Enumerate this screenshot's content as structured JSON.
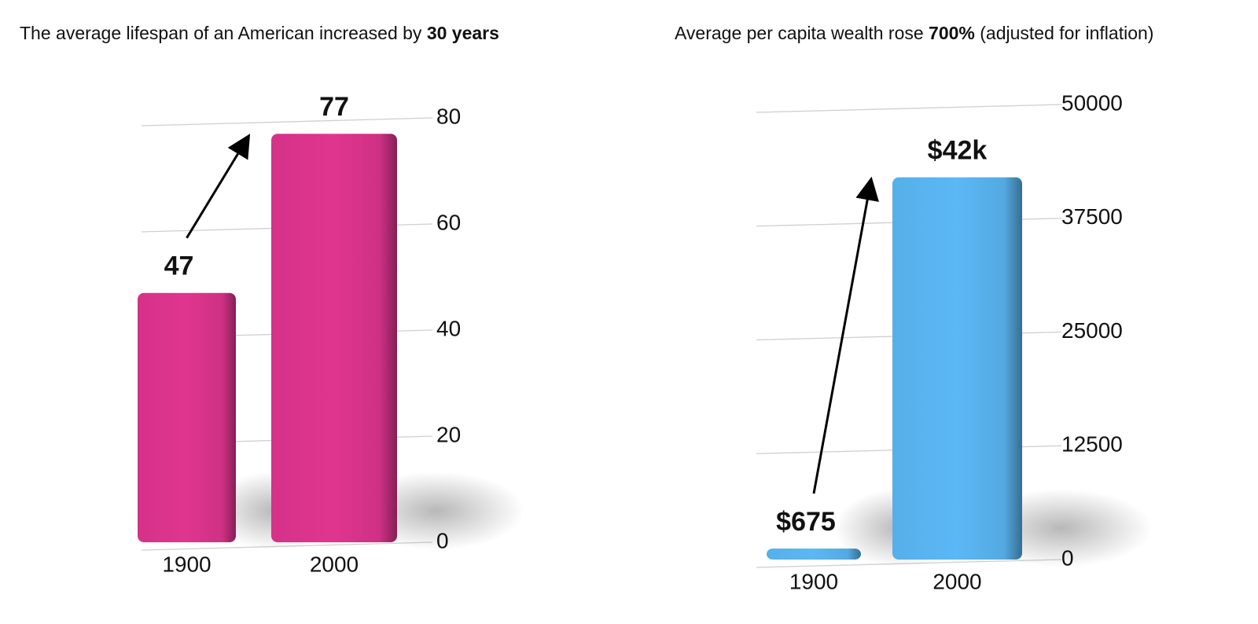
{
  "chart_data": [
    {
      "type": "bar",
      "title": "The average lifespan of an American increased by 30 years",
      "title_emphasis": "30 years",
      "categories": [
        "1900",
        "2000"
      ],
      "values": [
        47,
        77
      ],
      "color": "#e0358f",
      "ylim": [
        0,
        80
      ],
      "yticks": [
        0,
        20,
        40,
        60,
        80
      ],
      "grid": true
    },
    {
      "type": "bar",
      "title": "Average per capita wealth rose 700% (adjusted for inflation)",
      "title_emphasis": "700%",
      "categories": [
        "1900",
        "2000"
      ],
      "values": [
        675,
        42000
      ],
      "value_labels": [
        "$675",
        "$42k"
      ],
      "color": "#5bb8f5",
      "ylim": [
        0,
        50000
      ],
      "yticks": [
        0,
        12500,
        25000,
        37500,
        50000
      ],
      "grid": true
    }
  ]
}
